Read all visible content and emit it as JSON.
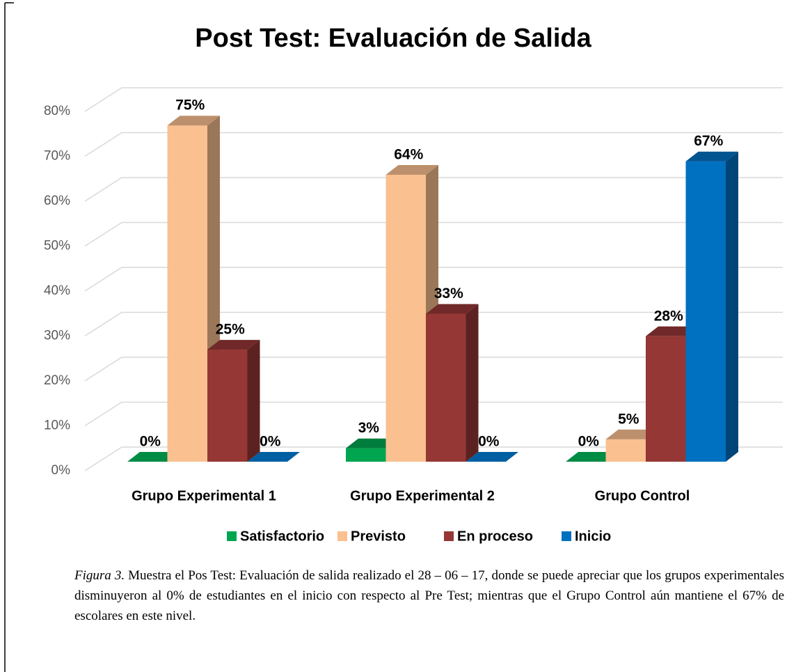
{
  "chart_data": {
    "type": "bar3d",
    "title": "Post Test: Evaluación de Salida",
    "categories": [
      "Grupo Experimental 1",
      "Grupo Experimental 2",
      "Grupo Control"
    ],
    "series": [
      {
        "name": "Satisfactorio",
        "color": "#00a550",
        "values": [
          0,
          3,
          0
        ],
        "value_labels": [
          "0%",
          "3%",
          "0%"
        ]
      },
      {
        "name": "Previsto",
        "color": "#fac090",
        "values": [
          75,
          64,
          5
        ],
        "value_labels": [
          "75%",
          "64%",
          "5%"
        ]
      },
      {
        "name": "En proceso",
        "color": "#953735",
        "values": [
          25,
          33,
          28
        ],
        "value_labels": [
          "25%",
          "33%",
          "28%"
        ]
      },
      {
        "name": "Inicio",
        "color": "#0070c0",
        "values": [
          0,
          0,
          67
        ],
        "value_labels": [
          "0%",
          "0%",
          "67%"
        ]
      }
    ],
    "ylim": [
      0,
      80
    ],
    "yticks": [
      {
        "value": 0,
        "label": "0%"
      },
      {
        "value": 10,
        "label": "10%"
      },
      {
        "value": 20,
        "label": "20%"
      },
      {
        "value": 30,
        "label": "30%"
      },
      {
        "value": 40,
        "label": "40%"
      },
      {
        "value": 50,
        "label": "50%"
      },
      {
        "value": 60,
        "label": "60%"
      },
      {
        "value": 70,
        "label": "70%"
      },
      {
        "value": 80,
        "label": "80%"
      }
    ],
    "grid": true,
    "legend": "bottom"
  },
  "caption": {
    "label": "Figura 3.",
    "text": " Muestra el Pos Test: Evaluación de salida realizado el 28 – 06 – 17, donde se puede apreciar que los grupos experimentales disminuyeron al 0% de estudiantes en el inicio con respecto al Pre Test; mientras que el Grupo Control aún mantiene el 67% de escolares en este nivel."
  }
}
